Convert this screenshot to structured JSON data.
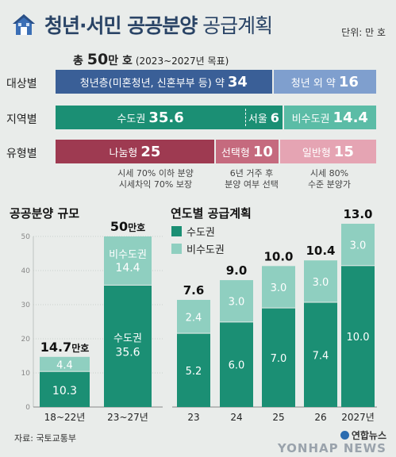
{
  "header": {
    "title_bold": "청년·서민 공공분양",
    "title_light": " 공급계획",
    "unit": "단위: 만 호",
    "total_prefix": "총 ",
    "total_value": "50",
    "total_suffix": "만 호",
    "total_period": "(2023~2027년 목표)"
  },
  "rows": [
    {
      "label": "대상별",
      "segments": [
        {
          "text": "청년층(미혼청년, 신혼부부 등) 약",
          "value": 34,
          "color": "#3a5f97"
        },
        {
          "text": "청년 외 약",
          "value": 16,
          "color": "#7f9fce"
        }
      ]
    },
    {
      "label": "지역별",
      "segments": [
        {
          "text": "수도권",
          "value": 35.6,
          "color": "#1b8f74"
        },
        {
          "text": "서울",
          "value": 6,
          "color": "#1b8f74"
        },
        {
          "text": "비수도권",
          "value": 14.4,
          "color": "#5bbca6"
        }
      ]
    },
    {
      "label": "유형별",
      "segments": [
        {
          "text": "나눔형",
          "value": 25,
          "color": "#9e3a51"
        },
        {
          "text": "선택형",
          "value": 10,
          "color": "#c56a7e"
        },
        {
          "text": "일반형",
          "value": 15,
          "color": "#e5a4b3"
        }
      ]
    }
  ],
  "type_notes": [
    [
      "시세 70% 이하 분양",
      "시세차익 70% 보장"
    ],
    [
      "6년 거주 후",
      "분양 여부 선택"
    ],
    [
      "시세 80%",
      "수준 분양가"
    ]
  ],
  "colors": {
    "metro": "#1b8f74",
    "nonmetro": "#8fcfc0",
    "accent": "#2a4466"
  },
  "chart_data": [
    {
      "type": "bar",
      "stacked": true,
      "title": "공공분양 규모",
      "categories": [
        "18~22년",
        "23~27년"
      ],
      "series": [
        {
          "name": "수도권",
          "values": [
            10.3,
            35.6
          ]
        },
        {
          "name": "비수도권",
          "values": [
            4.4,
            14.4
          ]
        }
      ],
      "totals": [
        14.7,
        50
      ],
      "total_unit": "만호",
      "ylim": [
        0,
        50
      ],
      "yticks": [
        0,
        10,
        20,
        30,
        40,
        50
      ],
      "grid": true
    },
    {
      "type": "bar",
      "stacked": true,
      "title": "연도별 공급계획",
      "categories": [
        "23",
        "24",
        "25",
        "26",
        "2027년"
      ],
      "series": [
        {
          "name": "수도권",
          "values": [
            5.2,
            6.0,
            7.0,
            7.4,
            10.0
          ]
        },
        {
          "name": "비수도권",
          "values": [
            2.4,
            3.0,
            3.0,
            3.0,
            3.0
          ]
        }
      ],
      "totals": [
        7.6,
        9.0,
        10.0,
        10.4,
        13.0
      ],
      "ylim": [
        0,
        13
      ],
      "legend": "top-left"
    }
  ],
  "footer": {
    "source": "자료: 국토교통부",
    "logo_kr": "연합뉴스",
    "logo_en": "YONHAP NEWS"
  }
}
